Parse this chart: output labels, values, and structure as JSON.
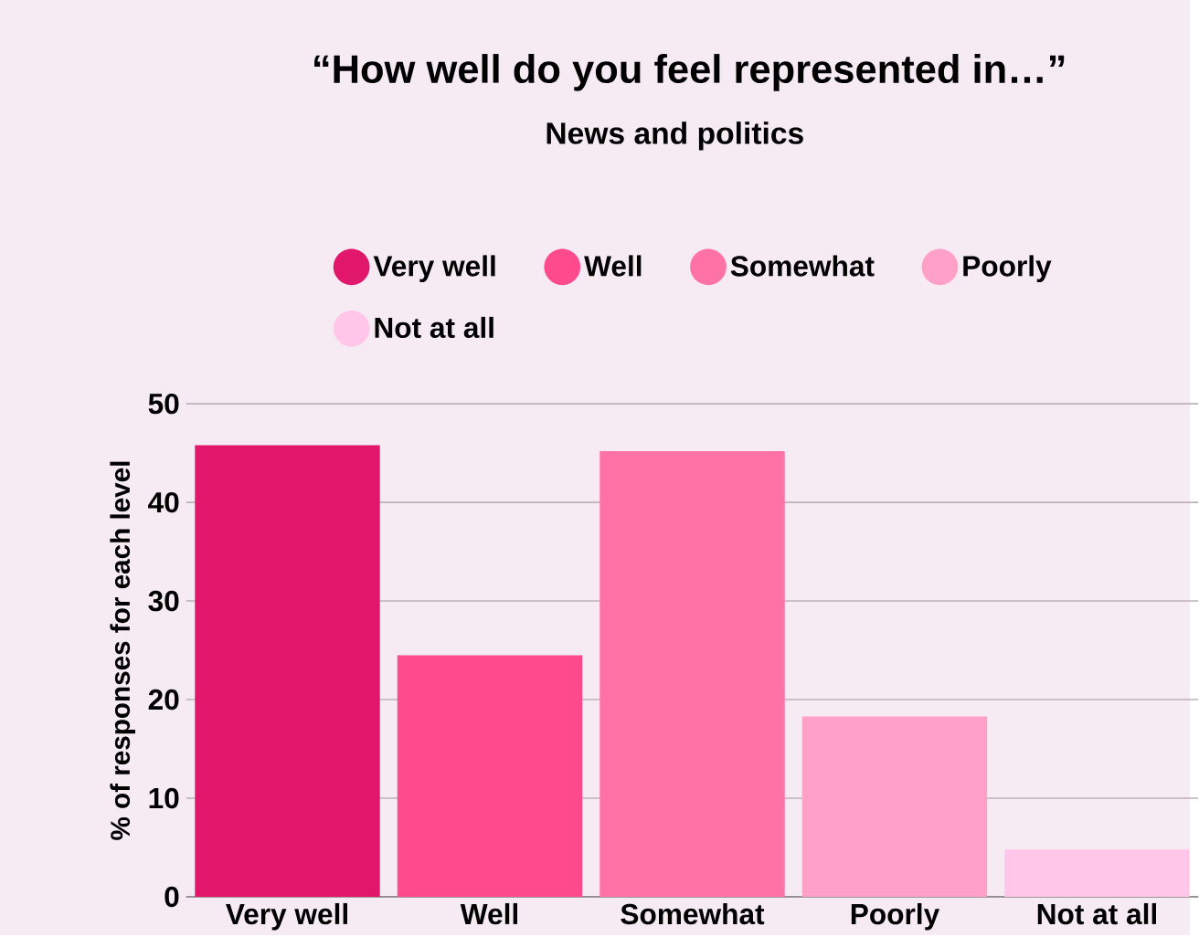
{
  "chart_data": {
    "type": "bar",
    "title": "“How well do you feel represented in…”",
    "subtitle": "News and politics",
    "ylabel": "% of responses for each level",
    "categories": [
      "Very well",
      "Well",
      "Somewhat",
      "Poorly",
      "Not at all"
    ],
    "series": [
      {
        "name": "Very well",
        "color": "#e0176b",
        "values": [
          45.8,
          null,
          null,
          null,
          null
        ]
      },
      {
        "name": "Well",
        "color": "#ff4a8d",
        "values": [
          null,
          24.5,
          null,
          null,
          null
        ]
      },
      {
        "name": "Somewhat",
        "color": "#ff72a6",
        "values": [
          null,
          null,
          45.2,
          null,
          null
        ]
      },
      {
        "name": "Poorly",
        "color": "#ffa0c9",
        "values": [
          null,
          null,
          null,
          18.3,
          null
        ]
      },
      {
        "name": "Not at all",
        "color": "#ffc6ea",
        "values": [
          null,
          null,
          null,
          null,
          4.8
        ]
      }
    ],
    "ylim": [
      0,
      50
    ],
    "yticks": [
      0,
      10,
      20,
      30,
      40,
      50
    ],
    "grid": "y",
    "legend": "top"
  }
}
